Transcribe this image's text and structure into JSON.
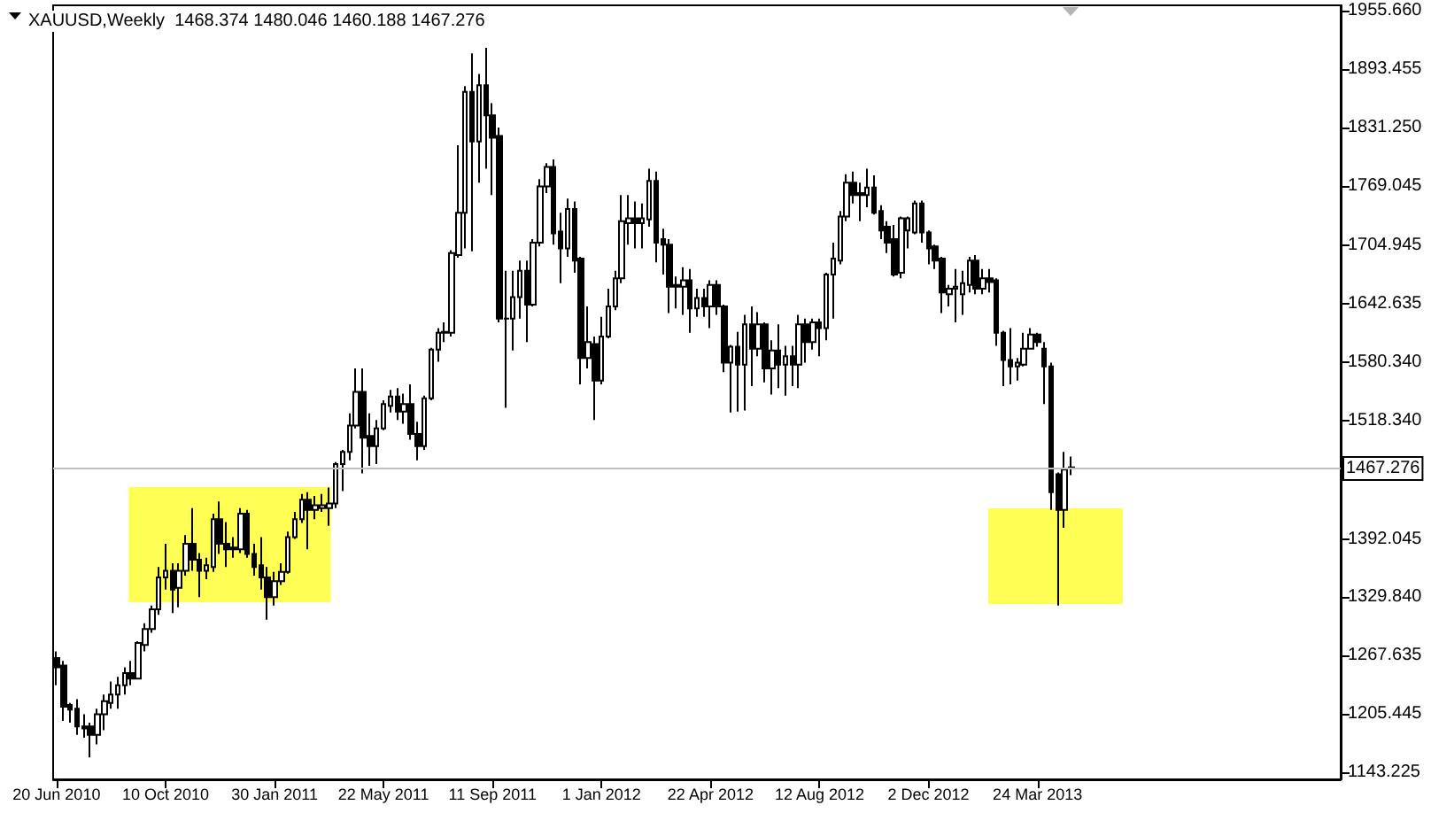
{
  "chart_data": {
    "type": "candlestick",
    "title": "XAUUSD,Weekly  1468.374 1480.046 1460.188 1467.276",
    "color": "#000000",
    "categories": [
      "20 Jun 2010",
      null,
      null,
      null,
      null,
      null,
      null,
      null,
      null,
      null,
      null,
      null,
      null,
      null,
      null,
      null,
      "10 Oct 2010",
      null,
      null,
      null,
      null,
      null,
      null,
      null,
      null,
      null,
      null,
      null,
      null,
      null,
      null,
      null,
      "30 Jan 2011",
      null,
      null,
      null,
      null,
      null,
      null,
      null,
      null,
      null,
      null,
      null,
      null,
      null,
      null,
      null,
      "22 May 2011",
      null,
      null,
      null,
      null,
      null,
      null,
      null,
      null,
      null,
      null,
      null,
      null,
      null,
      null,
      null,
      "11 Sep 2011",
      null,
      null,
      null,
      null,
      null,
      null,
      null,
      null,
      null,
      null,
      null,
      null,
      null,
      null,
      null,
      "1 Jan 2012",
      null,
      null,
      null,
      null,
      null,
      null,
      null,
      null,
      null,
      null,
      null,
      null,
      null,
      null,
      null,
      "22 Apr 2012",
      null,
      null,
      null,
      null,
      null,
      null,
      null,
      null,
      null,
      null,
      null,
      null,
      null,
      null,
      null,
      "12 Aug 2012",
      null,
      null,
      null,
      null,
      null,
      null,
      null,
      null,
      null,
      null,
      null,
      null,
      null,
      null,
      null,
      "2 Dec 2012",
      null,
      null,
      null,
      null,
      null,
      null,
      null,
      null,
      null,
      null,
      null,
      null,
      null,
      null,
      null,
      "24 Mar 2013",
      null,
      null,
      null,
      null,
      null,
      null,
      null,
      null,
      null,
      null,
      null,
      null,
      null,
      null,
      null,
      null,
      null,
      null,
      null,
      null,
      null,
      null,
      null,
      null,
      null,
      null,
      null,
      null,
      null,
      null,
      null,
      null,
      null,
      null,
      null,
      null,
      null,
      null,
      null,
      null,
      null,
      null,
      null,
      null
    ],
    "ohlc": [
      [
        1265,
        1272,
        1236,
        1255
      ],
      [
        1257,
        1262,
        1198,
        1213
      ],
      [
        1215,
        1217,
        1196,
        1210
      ],
      [
        1211,
        1221,
        1183,
        1192
      ],
      [
        1192,
        1205,
        1180,
        1190
      ],
      [
        1192,
        1196,
        1159,
        1183
      ],
      [
        1183,
        1211,
        1173,
        1205
      ],
      [
        1205,
        1226,
        1188,
        1219
      ],
      [
        1217,
        1240,
        1211,
        1226
      ],
      [
        1226,
        1245,
        1211,
        1236
      ],
      [
        1236,
        1255,
        1226,
        1249
      ],
      [
        1249,
        1262,
        1236,
        1243
      ],
      [
        1243,
        1283,
        1243,
        1281
      ],
      [
        1279,
        1302,
        1272,
        1296
      ],
      [
        1296,
        1321,
        1292,
        1317
      ],
      [
        1317,
        1362,
        1311,
        1351
      ],
      [
        1351,
        1387,
        1338,
        1358
      ],
      [
        1358,
        1366,
        1313,
        1338
      ],
      [
        1340,
        1366,
        1319,
        1358
      ],
      [
        1358,
        1396,
        1353,
        1387
      ],
      [
        1387,
        1425,
        1358,
        1370
      ],
      [
        1370,
        1377,
        1330,
        1358
      ],
      [
        1358,
        1372,
        1349,
        1364
      ],
      [
        1362,
        1419,
        1357,
        1413
      ],
      [
        1413,
        1432,
        1376,
        1387
      ],
      [
        1387,
        1410,
        1362,
        1381
      ],
      [
        1383,
        1394,
        1372,
        1381
      ],
      [
        1381,
        1425,
        1377,
        1419
      ],
      [
        1419,
        1423,
        1372,
        1376
      ],
      [
        1376,
        1387,
        1353,
        1362
      ],
      [
        1364,
        1394,
        1338,
        1351
      ],
      [
        1351,
        1362,
        1306,
        1330
      ],
      [
        1330,
        1357,
        1321,
        1347
      ],
      [
        1347,
        1366,
        1343,
        1357
      ],
      [
        1357,
        1400,
        1355,
        1394
      ],
      [
        1394,
        1421,
        1392,
        1413
      ],
      [
        1413,
        1440,
        1409,
        1434
      ],
      [
        1434,
        1442,
        1381,
        1423
      ],
      [
        1423,
        1438,
        1413,
        1428
      ],
      [
        1425,
        1440,
        1421,
        1428
      ],
      [
        1425,
        1447,
        1406,
        1430
      ],
      [
        1430,
        1474,
        1425,
        1472
      ],
      [
        1472,
        1487,
        1443,
        1485
      ],
      [
        1485,
        1526,
        1476,
        1513
      ],
      [
        1513,
        1574,
        1510,
        1549
      ],
      [
        1549,
        1574,
        1462,
        1500
      ],
      [
        1502,
        1526,
        1470,
        1491
      ],
      [
        1491,
        1519,
        1472,
        1510
      ],
      [
        1510,
        1540,
        1508,
        1536
      ],
      [
        1534,
        1551,
        1527,
        1544
      ],
      [
        1544,
        1553,
        1519,
        1528
      ],
      [
        1528,
        1547,
        1515,
        1536
      ],
      [
        1536,
        1557,
        1498,
        1504
      ],
      [
        1504,
        1517,
        1476,
        1491
      ],
      [
        1491,
        1545,
        1487,
        1542
      ],
      [
        1542,
        1596,
        1540,
        1594
      ],
      [
        1594,
        1617,
        1581,
        1612
      ],
      [
        1612,
        1623,
        1602,
        1613
      ],
      [
        1612,
        1700,
        1608,
        1697
      ],
      [
        1695,
        1812,
        1692,
        1740
      ],
      [
        1740,
        1875,
        1702,
        1869
      ],
      [
        1869,
        1910,
        1699,
        1816
      ],
      [
        1816,
        1888,
        1772,
        1876
      ],
      [
        1876,
        1916,
        1787,
        1844
      ],
      [
        1844,
        1857,
        1759,
        1820
      ],
      [
        1822,
        1831,
        1623,
        1627
      ],
      [
        1627,
        1678,
        1532,
        1627
      ],
      [
        1627,
        1678,
        1593,
        1650
      ],
      [
        1650,
        1689,
        1627,
        1678
      ],
      [
        1678,
        1689,
        1602,
        1642
      ],
      [
        1642,
        1712,
        1640,
        1708
      ],
      [
        1708,
        1776,
        1704,
        1768
      ],
      [
        1768,
        1793,
        1761,
        1789
      ],
      [
        1789,
        1797,
        1706,
        1718
      ],
      [
        1720,
        1740,
        1665,
        1702
      ],
      [
        1702,
        1755,
        1693,
        1744
      ],
      [
        1744,
        1752,
        1676,
        1689
      ],
      [
        1691,
        1693,
        1557,
        1585
      ],
      [
        1585,
        1640,
        1574,
        1602
      ],
      [
        1600,
        1608,
        1519,
        1561
      ],
      [
        1561,
        1629,
        1557,
        1608
      ],
      [
        1608,
        1659,
        1606,
        1640
      ],
      [
        1640,
        1678,
        1636,
        1670
      ],
      [
        1670,
        1759,
        1665,
        1731
      ],
      [
        1729,
        1759,
        1706,
        1734
      ],
      [
        1734,
        1752,
        1702,
        1729
      ],
      [
        1729,
        1750,
        1702,
        1734
      ],
      [
        1733,
        1787,
        1725,
        1774
      ],
      [
        1774,
        1784,
        1687,
        1708
      ],
      [
        1712,
        1723,
        1674,
        1706
      ],
      [
        1706,
        1712,
        1633,
        1661
      ],
      [
        1663,
        1672,
        1638,
        1661
      ],
      [
        1661,
        1682,
        1631,
        1668
      ],
      [
        1668,
        1680,
        1612,
        1638
      ],
      [
        1638,
        1659,
        1629,
        1649
      ],
      [
        1649,
        1659,
        1629,
        1640
      ],
      [
        1640,
        1668,
        1617,
        1663
      ],
      [
        1663,
        1668,
        1631,
        1640
      ],
      [
        1640,
        1642,
        1570,
        1580
      ],
      [
        1580,
        1599,
        1527,
        1597
      ],
      [
        1597,
        1613,
        1528,
        1578
      ],
      [
        1578,
        1631,
        1529,
        1621
      ],
      [
        1621,
        1640,
        1555,
        1595
      ],
      [
        1595,
        1634,
        1587,
        1621
      ],
      [
        1621,
        1623,
        1559,
        1574
      ],
      [
        1574,
        1604,
        1546,
        1593
      ],
      [
        1593,
        1621,
        1553,
        1578
      ],
      [
        1578,
        1598,
        1545,
        1587
      ],
      [
        1587,
        1598,
        1555,
        1578
      ],
      [
        1578,
        1631,
        1553,
        1621
      ],
      [
        1621,
        1627,
        1580,
        1602
      ],
      [
        1602,
        1627,
        1594,
        1623
      ],
      [
        1623,
        1627,
        1587,
        1617
      ],
      [
        1617,
        1676,
        1604,
        1674
      ],
      [
        1674,
        1708,
        1627,
        1691
      ],
      [
        1689,
        1742,
        1685,
        1736
      ],
      [
        1736,
        1781,
        1731,
        1772
      ],
      [
        1772,
        1784,
        1750,
        1759
      ],
      [
        1761,
        1772,
        1731,
        1759
      ],
      [
        1759,
        1787,
        1746,
        1767
      ],
      [
        1767,
        1780,
        1738,
        1740
      ],
      [
        1742,
        1748,
        1712,
        1721
      ],
      [
        1725,
        1731,
        1697,
        1708
      ],
      [
        1712,
        1727,
        1672,
        1674
      ],
      [
        1676,
        1736,
        1670,
        1734
      ],
      [
        1721,
        1736,
        1702,
        1734
      ],
      [
        1719,
        1753,
        1717,
        1750
      ],
      [
        1750,
        1753,
        1708,
        1719
      ],
      [
        1719,
        1721,
        1685,
        1702
      ],
      [
        1704,
        1706,
        1680,
        1689
      ],
      [
        1691,
        1693,
        1633,
        1655
      ],
      [
        1653,
        1663,
        1640,
        1659
      ],
      [
        1659,
        1680,
        1623,
        1661
      ],
      [
        1653,
        1678,
        1631,
        1665
      ],
      [
        1663,
        1693,
        1655,
        1689
      ],
      [
        1689,
        1695,
        1653,
        1659
      ],
      [
        1659,
        1680,
        1653,
        1670
      ],
      [
        1670,
        1680,
        1655,
        1666
      ],
      [
        1668,
        1670,
        1598,
        1612
      ],
      [
        1612,
        1614,
        1555,
        1583
      ],
      [
        1583,
        1617,
        1557,
        1576
      ],
      [
        1576,
        1585,
        1561,
        1580
      ],
      [
        1578,
        1612,
        1576,
        1595
      ],
      [
        1595,
        1617,
        1595,
        1610
      ],
      [
        1610,
        1612,
        1597,
        1602
      ],
      [
        1595,
        1602,
        1536,
        1576
      ],
      [
        1576,
        1580,
        1423,
        1442
      ],
      [
        1461,
        1463,
        1321,
        1423
      ],
      [
        1423,
        1485,
        1404,
        1466
      ],
      [
        1468.374,
        1480.046,
        1460.188,
        1467.276
      ],
      null,
      null,
      null,
      null,
      null,
      null,
      null,
      null,
      null,
      null,
      null,
      null,
      null,
      null,
      null,
      null,
      null,
      null,
      null,
      null,
      null,
      null,
      null,
      null,
      null,
      null,
      null,
      null,
      null,
      null,
      null,
      null,
      null,
      null,
      null,
      null,
      null,
      null,
      null
    ],
    "ylim": [
      1135.6,
      1961.3
    ],
    "yticks": [
      {
        "value": 1955.66,
        "label": "1955.660"
      },
      {
        "value": 1893.455,
        "label": "1893.455"
      },
      {
        "value": 1831.25,
        "label": "1831.250"
      },
      {
        "value": 1769.045,
        "label": "1769.045"
      },
      {
        "value": 1704.945,
        "label": "1704.945"
      },
      {
        "value": 1642.635,
        "label": "1642.635"
      },
      {
        "value": 1580.34,
        "label": "1580.340"
      },
      {
        "value": 1518.34,
        "label": "1518.340"
      },
      {
        "value": 1456.135,
        "label": null
      },
      {
        "value": 1392.045,
        "label": "1392.045"
      },
      {
        "value": 1329.84,
        "label": "1329.840"
      },
      {
        "value": 1267.635,
        "label": "1267.635"
      },
      {
        "value": 1205.445,
        "label": "1205.445"
      },
      {
        "value": 1143.225,
        "label": "1143.225"
      }
    ],
    "ref_lines": [
      {
        "axis": "y",
        "value": 1467.276,
        "label": "1467.276",
        "color": "#c0c0c0"
      }
    ]
  }
}
